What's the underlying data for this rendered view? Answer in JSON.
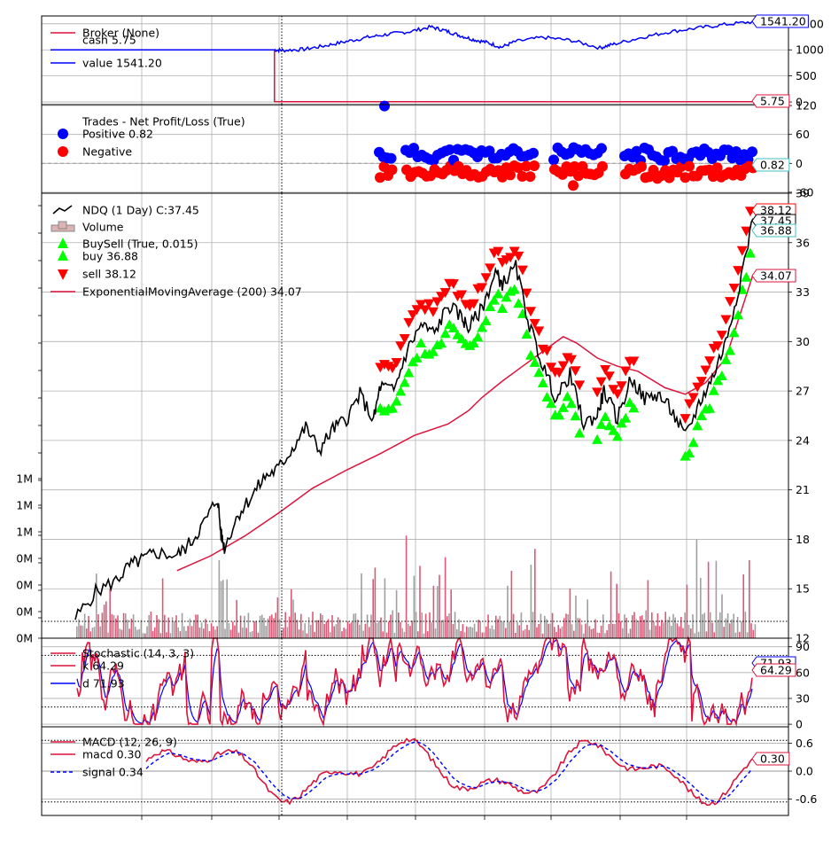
{
  "chart_data": [
    {
      "type": "line",
      "panel": "broker",
      "legend": [
        {
          "label": "Broker (None)",
          "color": "#dc143c"
        },
        {
          "label": "cash 5.75",
          "color": ""
        },
        {
          "label": "value 1541.20",
          "color": "#0000ff"
        }
      ],
      "yticks": [
        "0",
        "500",
        "1000",
        "1500"
      ],
      "ylim": [
        -50,
        1650
      ],
      "series": [
        {
          "name": "cash",
          "color": "#dc143c",
          "points": [
            [
              0,
              1000
            ],
            [
              0.318,
              1000
            ],
            [
              0.318,
              5.75
            ],
            [
              1,
              5.75
            ]
          ]
        },
        {
          "name": "value",
          "color": "#0000ff",
          "points": [
            [
              0,
              1000
            ],
            [
              0.318,
              1000
            ],
            [
              0.33,
              990
            ],
            [
              0.36,
              1010
            ],
            [
              0.39,
              1080
            ],
            [
              0.42,
              1160
            ],
            [
              0.45,
              1240
            ],
            [
              0.48,
              1300
            ],
            [
              0.51,
              1350
            ],
            [
              0.54,
              1440
            ],
            [
              0.56,
              1370
            ],
            [
              0.58,
              1280
            ],
            [
              0.6,
              1200
            ],
            [
              0.62,
              1140
            ],
            [
              0.64,
              1050
            ],
            [
              0.66,
              1160
            ],
            [
              0.7,
              1240
            ],
            [
              0.74,
              1180
            ],
            [
              0.78,
              1040
            ],
            [
              0.8,
              1110
            ],
            [
              0.84,
              1240
            ],
            [
              0.88,
              1350
            ],
            [
              0.92,
              1420
            ],
            [
              0.96,
              1490
            ],
            [
              1,
              1541.2
            ]
          ]
        }
      ],
      "last_value_tags": [
        "1541.20",
        "5.75"
      ]
    },
    {
      "type": "scatter",
      "panel": "trades",
      "legend": [
        {
          "label": "Trades - Net Profit/Loss (True)",
          "color": ""
        },
        {
          "label": "Positive 0.82",
          "color": "#0000ff"
        },
        {
          "label": "Negative",
          "color": "#ff0000"
        }
      ],
      "yticks": [
        "-60",
        "0",
        "60",
        "120"
      ],
      "ylim": [
        -62,
        122
      ],
      "last_value_tags": [
        "0.82"
      ]
    },
    {
      "type": "line",
      "panel": "price",
      "legend": [
        {
          "label": "NDQ (1 Day) C:37.45",
          "color": "#000000"
        },
        {
          "label": "Volume",
          "color": "#dcb4b4"
        },
        {
          "label": "BuySell (True, 0.015)",
          "color": "#00ff00"
        },
        {
          "label": "buy 36.88",
          "color": "#00ff00"
        },
        {
          "label": "sell 38.12",
          "color": "#ff0000"
        },
        {
          "label": "ExponentialMovingAverage (200) 34.07",
          "color": "#dc143c"
        }
      ],
      "yticks": [
        "12",
        "15",
        "18",
        "21",
        "24",
        "27",
        "30",
        "33",
        "36",
        "39"
      ],
      "ylim": [
        12,
        39
      ],
      "volume_ticks": [
        "0M",
        "0M",
        "0M",
        "0M",
        "1M",
        "1M",
        "1M"
      ],
      "close_points": [
        [
          0,
          13.2
        ],
        [
          0.03,
          14.8
        ],
        [
          0.06,
          15.5
        ],
        [
          0.08,
          16.4
        ],
        [
          0.1,
          16.8
        ],
        [
          0.12,
          17.2
        ],
        [
          0.15,
          17.0
        ],
        [
          0.17,
          17.8
        ],
        [
          0.19,
          19.0
        ],
        [
          0.21,
          20.5
        ],
        [
          0.215,
          18.3
        ],
        [
          0.22,
          17.5
        ],
        [
          0.24,
          19.5
        ],
        [
          0.26,
          20.6
        ],
        [
          0.28,
          21.8
        ],
        [
          0.3,
          22.3
        ],
        [
          0.32,
          23.5
        ],
        [
          0.34,
          24.8
        ],
        [
          0.36,
          23.4
        ],
        [
          0.38,
          24.7
        ],
        [
          0.4,
          25.3
        ],
        [
          0.42,
          26.8
        ],
        [
          0.44,
          25.2
        ],
        [
          0.45,
          27.3
        ],
        [
          0.47,
          27.0
        ],
        [
          0.49,
          29.5
        ],
        [
          0.51,
          31.0
        ],
        [
          0.53,
          30.5
        ],
        [
          0.55,
          32.2
        ],
        [
          0.57,
          31.5
        ],
        [
          0.58,
          30.8
        ],
        [
          0.6,
          32.0
        ],
        [
          0.62,
          34.2
        ],
        [
          0.63,
          33.5
        ],
        [
          0.65,
          34.5
        ],
        [
          0.67,
          31.0
        ],
        [
          0.69,
          28.5
        ],
        [
          0.71,
          26.5
        ],
        [
          0.73,
          28.0
        ],
        [
          0.75,
          25.0
        ],
        [
          0.77,
          25.5
        ],
        [
          0.78,
          27.0
        ],
        [
          0.8,
          25.3
        ],
        [
          0.82,
          27.8
        ],
        [
          0.84,
          26.5
        ],
        [
          0.86,
          26.8
        ],
        [
          0.88,
          25.8
        ],
        [
          0.9,
          24.2
        ],
        [
          0.92,
          26.2
        ],
        [
          0.94,
          27.8
        ],
        [
          0.96,
          30.0
        ],
        [
          0.98,
          33.5
        ],
        [
          1,
          37.45
        ]
      ],
      "ema_points": [
        [
          0.15,
          16.1
        ],
        [
          0.2,
          17.0
        ],
        [
          0.25,
          18.2
        ],
        [
          0.3,
          19.6
        ],
        [
          0.35,
          21.1
        ],
        [
          0.4,
          22.2
        ],
        [
          0.45,
          23.2
        ],
        [
          0.5,
          24.3
        ],
        [
          0.55,
          25.0
        ],
        [
          0.58,
          25.8
        ],
        [
          0.6,
          26.6
        ],
        [
          0.63,
          27.6
        ],
        [
          0.66,
          28.5
        ],
        [
          0.7,
          29.7
        ],
        [
          0.72,
          30.3
        ],
        [
          0.74,
          29.9
        ],
        [
          0.77,
          29.0
        ],
        [
          0.8,
          28.5
        ],
        [
          0.83,
          28.2
        ],
        [
          0.87,
          27.2
        ],
        [
          0.9,
          26.8
        ],
        [
          0.93,
          27.5
        ],
        [
          0.96,
          29.0
        ],
        [
          1,
          34.07
        ]
      ],
      "last_value_tags": [
        "38.12",
        "37.45",
        "36.88",
        "34.07"
      ]
    },
    {
      "type": "line",
      "panel": "stochastic",
      "legend": [
        {
          "label": "Stochastic (14, 3, 3)",
          "color": "#dc143c"
        },
        {
          "label": "k 64.29",
          "color": "#dc143c"
        },
        {
          "label": "d 71.93",
          "color": "#0000ff"
        }
      ],
      "yticks": [
        "0",
        "30",
        "60",
        "90"
      ],
      "ylim": [
        -3,
        100
      ],
      "last_value_tags": [
        "71.93",
        "64.29"
      ]
    },
    {
      "type": "line",
      "panel": "macd",
      "legend": [
        {
          "label": "MACD (12, 26, 9)",
          "color": "#dc143c"
        },
        {
          "label": "macd 0.30",
          "color": "#dc143c"
        },
        {
          "label": "signal 0.34",
          "color": "#0000ff"
        }
      ],
      "yticks": [
        "-0.6",
        "0.0",
        "0.6"
      ],
      "ylim": [
        -0.95,
        0.95
      ],
      "last_value_tags": [
        "0.30"
      ]
    }
  ]
}
